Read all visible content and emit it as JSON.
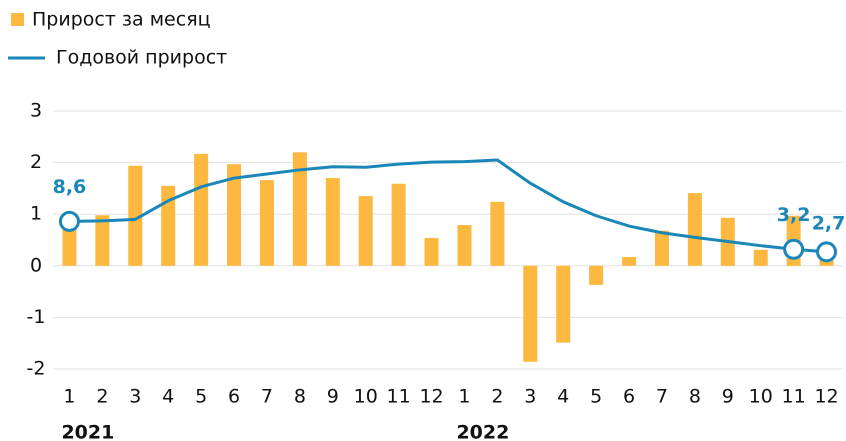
{
  "chart_data": {
    "type": "bar_line",
    "categories": [
      "1",
      "2",
      "3",
      "4",
      "5",
      "6",
      "7",
      "8",
      "9",
      "10",
      "11",
      "12",
      "1",
      "2",
      "3",
      "4",
      "5",
      "6",
      "7",
      "8",
      "9",
      "10",
      "11",
      "12"
    ],
    "groups": [
      "2021",
      "2022"
    ],
    "ylim": [
      -2,
      3
    ],
    "yticks": [
      -2,
      -1,
      0,
      1,
      2,
      3
    ],
    "y2lim": [
      -20,
      30
    ],
    "grid": true,
    "legend": "top-left",
    "series": [
      {
        "name": "Прирост за месяц",
        "type": "bar",
        "color": "#fdb840",
        "values": [
          0.9,
          0.98,
          1.94,
          1.55,
          2.17,
          1.97,
          1.66,
          2.2,
          1.7,
          1.35,
          1.59,
          0.54,
          0.79,
          1.24,
          -1.86,
          -1.49,
          -0.37,
          0.17,
          0.68,
          1.41,
          0.93,
          0.31,
          0.97,
          0.3
        ]
      },
      {
        "name": "Годовой прирост",
        "type": "line",
        "axis": "y2",
        "color": "#1a87b8",
        "values": [
          8.6,
          8.7,
          9.0,
          12.6,
          15.3,
          17.0,
          17.8,
          18.6,
          19.2,
          19.1,
          19.7,
          20.1,
          20.2,
          20.5,
          16.0,
          12.4,
          9.7,
          7.7,
          6.4,
          5.5,
          4.7,
          3.9,
          3.2,
          2.7
        ],
        "value_labels": [
          "8,6",
          null,
          null,
          null,
          null,
          null,
          null,
          null,
          null,
          null,
          null,
          null,
          null,
          null,
          null,
          null,
          null,
          null,
          null,
          null,
          null,
          null,
          "3,2",
          "2,7"
        ]
      }
    ]
  }
}
